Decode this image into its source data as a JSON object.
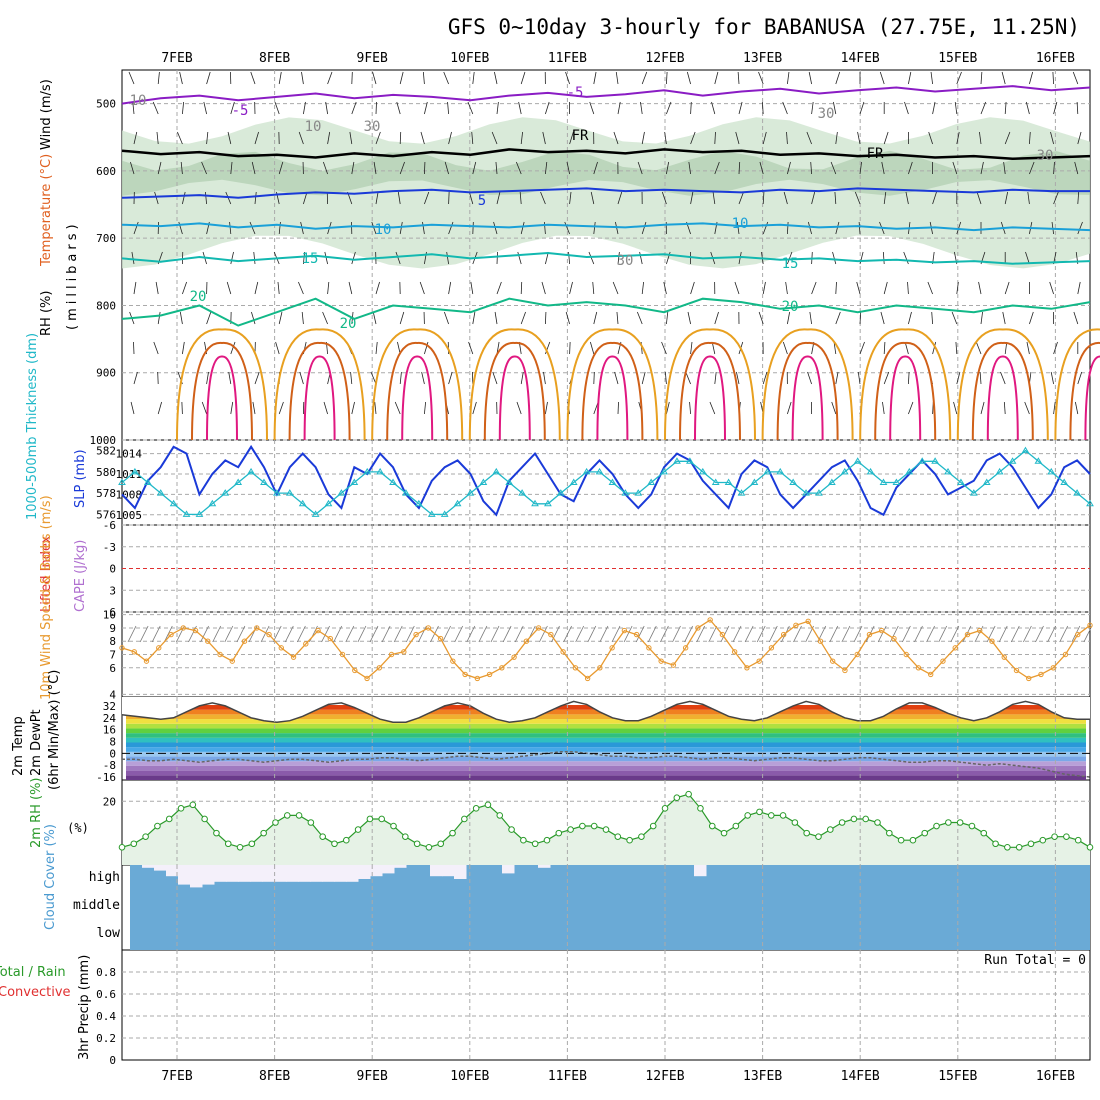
{
  "title": "GFS 0~10day 3-hourly for BABANUSA (27.75E, 11.25N)",
  "dates": [
    "7FEB",
    "8FEB",
    "9FEB",
    "10FEB",
    "11FEB",
    "12FEB",
    "13FEB",
    "14FEB",
    "15FEB",
    "16FEB"
  ],
  "colors": {
    "purple": "#8a1cc4",
    "blue": "#1a3ad8",
    "cyan": "#1aa0d8",
    "teal": "#12b8b0",
    "green": "#12b888",
    "orange": "#e8a020",
    "darkorange": "#d06018",
    "magenta": "#e01880",
    "rh_fill": "#cfe5cf",
    "cloud": "#6aaad6",
    "rh2m": "#2a9a2a",
    "wind10": "#e89a30",
    "slp": "#1a3ad8",
    "thick": "#20b8c8"
  },
  "chart_data": [
    {
      "id": "upper_air",
      "type": "contour",
      "ylabel_parts": [
        "RH (%)",
        "Temperature (°C)",
        "Wind (m/s)"
      ],
      "yaxis_label": "(millibars)",
      "yticks": [
        500,
        600,
        700,
        800,
        900,
        1000
      ],
      "ylim": [
        450,
        1000
      ],
      "contour_labels": [
        "-5",
        "-5",
        "FR",
        "FR",
        "5",
        "10",
        "10",
        "15",
        "15",
        "20",
        "20",
        "20",
        "30",
        "30",
        "30",
        "30",
        "10",
        "10"
      ],
      "temperature_levels": [
        {
          "label": "-5",
          "p": [
            500,
            492,
            488,
            495,
            490,
            485,
            492,
            487,
            490,
            495,
            488,
            484,
            490,
            486,
            480,
            488,
            482,
            478,
            485,
            480,
            476,
            482,
            478,
            474,
            480,
            476
          ]
        },
        {
          "label": "FR",
          "p": [
            570,
            575,
            572,
            578,
            576,
            580,
            574,
            578,
            572,
            576,
            568,
            572,
            570,
            574,
            568,
            572,
            570,
            576,
            574,
            578,
            576,
            580,
            578,
            582,
            580,
            578
          ]
        },
        {
          "label": "5",
          "p": [
            640,
            638,
            636,
            640,
            635,
            632,
            634,
            630,
            628,
            632,
            630,
            628,
            626,
            630,
            628,
            630,
            632,
            628,
            630,
            626,
            628,
            630,
            632,
            628,
            630,
            630
          ]
        },
        {
          "label": "10",
          "p": [
            680,
            682,
            678,
            684,
            680,
            686,
            682,
            684,
            680,
            682,
            684,
            680,
            682,
            684,
            680,
            678,
            682,
            680,
            684,
            682,
            686,
            684,
            688,
            684,
            686,
            688
          ]
        },
        {
          "label": "15",
          "p": [
            730,
            735,
            728,
            734,
            730,
            726,
            732,
            728,
            724,
            730,
            726,
            722,
            728,
            726,
            724,
            730,
            728,
            732,
            730,
            734,
            732,
            736,
            734,
            738,
            736,
            734
          ]
        },
        {
          "label": "20",
          "p": [
            820,
            815,
            800,
            830,
            810,
            790,
            820,
            800,
            805,
            810,
            790,
            800,
            795,
            800,
            810,
            790,
            795,
            805,
            800,
            810,
            800,
            805,
            810,
            800,
            805,
            795
          ]
        }
      ]
    },
    {
      "id": "thickness_slp",
      "type": "line",
      "ylabel_left": "1000-500mb Thickness (dm)",
      "ylabel_right": "SLP (mb)",
      "left_ticks": [
        576,
        578,
        580,
        582
      ],
      "left_ylim": [
        575,
        583
      ],
      "right_ticks": [
        1005,
        1008,
        1011,
        1014
      ],
      "right_ylim": [
        1003.5,
        1016
      ],
      "series": [
        {
          "name": "SLP",
          "values": [
            1008,
            1006,
            1010,
            1012,
            1015,
            1014,
            1008,
            1011,
            1013,
            1012,
            1015,
            1012,
            1008,
            1012,
            1014,
            1012,
            1008,
            1006,
            1012,
            1011,
            1014,
            1012,
            1008,
            1006,
            1010,
            1012,
            1013,
            1011,
            1007,
            1005,
            1010,
            1012,
            1014,
            1011,
            1008,
            1007,
            1011,
            1013,
            1011,
            1008,
            1006,
            1008,
            1012,
            1014,
            1013,
            1010,
            1008,
            1006,
            1011,
            1013,
            1012,
            1008,
            1006,
            1008,
            1010,
            1012,
            1013,
            1010,
            1006,
            1005,
            1009,
            1011,
            1013,
            1011,
            1008,
            1009,
            1010,
            1013,
            1014,
            1012,
            1009,
            1006,
            1008,
            1012,
            1013,
            1011
          ]
        },
        {
          "name": "Thickness",
          "values": [
            579,
            580,
            579,
            578,
            577,
            576,
            576,
            577,
            578,
            579,
            580,
            579,
            578,
            578,
            577,
            576,
            577,
            578,
            579,
            580,
            580,
            579,
            578,
            577,
            576,
            576,
            577,
            578,
            579,
            580,
            579,
            578,
            577,
            577,
            578,
            579,
            580,
            580,
            579,
            578,
            578,
            579,
            580,
            581,
            581,
            580,
            579,
            579,
            578,
            579,
            580,
            580,
            579,
            578,
            578,
            579,
            580,
            581,
            580,
            579,
            579,
            580,
            581,
            581,
            580,
            579,
            578,
            579,
            580,
            581,
            582,
            581,
            580,
            579,
            578,
            577
          ]
        }
      ]
    },
    {
      "id": "instability",
      "type": "line",
      "ylabel_left": "Lifted Index",
      "ylabel_right": "CAPE (J/kg)",
      "yticks": [
        -6,
        -3,
        0,
        3,
        6
      ],
      "ylim": [
        -6,
        6
      ],
      "series": []
    },
    {
      "id": "wind10m",
      "type": "line",
      "ylabel": "10m Wind Speed & Barbs (m/s)",
      "yticks": [
        4,
        6,
        7,
        8,
        9,
        10
      ],
      "ylim": [
        3.8,
        10.2
      ],
      "series": [
        {
          "name": "Speed",
          "values": [
            7.5,
            7.2,
            6.5,
            7.5,
            8.5,
            9,
            8.8,
            8,
            7,
            6.5,
            8,
            9,
            8.5,
            7.5,
            6.8,
            7.8,
            8.8,
            8.2,
            7,
            5.8,
            5.2,
            6,
            7,
            7.2,
            8.5,
            9,
            8.2,
            6.5,
            5.5,
            5.2,
            5.5,
            6,
            6.8,
            8,
            9,
            8.5,
            7.2,
            6,
            5.2,
            6,
            7.5,
            8.8,
            8.5,
            7.5,
            6.5,
            6.2,
            7.5,
            9,
            9.6,
            8.5,
            7.2,
            6,
            6.5,
            7.5,
            8.5,
            9.2,
            9.5,
            8,
            6.5,
            5.8,
            7,
            8.5,
            8.8,
            8.2,
            7,
            6,
            5.5,
            6.5,
            7.5,
            8.5,
            8.8,
            8,
            6.8,
            5.8,
            5.2,
            5.5,
            6,
            7,
            8.5,
            9.2
          ]
        }
      ]
    },
    {
      "id": "temp2m",
      "type": "area",
      "ylabel_parts": [
        "2m Temp",
        "2m DewPt",
        "(6hr Min/Max) (°C)"
      ],
      "yticks": [
        -16,
        -8,
        0,
        8,
        16,
        24,
        32
      ],
      "ylim": [
        -18,
        38
      ],
      "series": [
        {
          "name": "Temp",
          "values": [
            26,
            25,
            24,
            23,
            24,
            28,
            32,
            34,
            32,
            28,
            24,
            22,
            21,
            22,
            25,
            29,
            33,
            34,
            31,
            27,
            23,
            21,
            21,
            24,
            28,
            32,
            34,
            32,
            27,
            23,
            21,
            22,
            24,
            28,
            32,
            35,
            33,
            28,
            24,
            22,
            22,
            25,
            29,
            33,
            35,
            33,
            29,
            25,
            23,
            22,
            24,
            28,
            32,
            35,
            33,
            28,
            24,
            22,
            22,
            25,
            30,
            34,
            34,
            31,
            27,
            24,
            22,
            24,
            28,
            33,
            35,
            33,
            28,
            24,
            23,
            23
          ]
        },
        {
          "name": "DewPt",
          "values": [
            -4,
            -4,
            -5,
            -5,
            -4,
            -5,
            -6,
            -5,
            -4,
            -4,
            -5,
            -6,
            -5,
            -4,
            -4,
            -5,
            -6,
            -5,
            -4,
            -4,
            -3,
            -3,
            -4,
            -5,
            -4,
            -3,
            -2,
            -2,
            -3,
            -4,
            -3,
            -2,
            -1,
            0,
            1,
            1,
            0,
            -1,
            -2,
            -2,
            -3,
            -3,
            -2,
            -2,
            -3,
            -4,
            -3,
            -3,
            -4,
            -5,
            -4,
            -3,
            -3,
            -4,
            -5,
            -5,
            -4,
            -3,
            -3,
            -4,
            -5,
            -6,
            -6,
            -5,
            -5,
            -6,
            -7,
            -8,
            -7,
            -8,
            -9,
            -10,
            -12,
            -14,
            -15,
            -16
          ]
        }
      ]
    },
    {
      "id": "rh2m",
      "type": "area",
      "ylabel": "2m RH (%)",
      "yticks": [
        20
      ],
      "ylim": [
        2,
        26
      ],
      "series": [
        {
          "name": "RH",
          "values": [
            7,
            8,
            10,
            13,
            15,
            18,
            19,
            15,
            11,
            8,
            7,
            8,
            11,
            14,
            16,
            16,
            14,
            10,
            8,
            9,
            12,
            15,
            15,
            13,
            10,
            8,
            7,
            8,
            11,
            15,
            18,
            19,
            16,
            12,
            9,
            8,
            9,
            11,
            12,
            13,
            13,
            12,
            10,
            9,
            10,
            13,
            18,
            21,
            22,
            18,
            13,
            11,
            13,
            16,
            17,
            16,
            16,
            14,
            11,
            10,
            12,
            14,
            15,
            15,
            14,
            11,
            9,
            9,
            11,
            13,
            14,
            14,
            13,
            11,
            8,
            7,
            7,
            8,
            9,
            10,
            10,
            9,
            7
          ]
        }
      ]
    },
    {
      "id": "cloud",
      "type": "bar",
      "ylabel": "Cloud Cover (%)",
      "layer_labels": [
        "high",
        "middle",
        "low"
      ],
      "series": [
        {
          "name": "high",
          "values": [
            100,
            90,
            80,
            60,
            30,
            20,
            30,
            40,
            40,
            40,
            40,
            40,
            40,
            40,
            40,
            40,
            40,
            40,
            40,
            50,
            60,
            70,
            90,
            100,
            100,
            60,
            60,
            50,
            100,
            100,
            100,
            70,
            100,
            100,
            90,
            100,
            100,
            100,
            100,
            100,
            100,
            100,
            100,
            100,
            100,
            100,
            100,
            60,
            100,
            100,
            100,
            100,
            100,
            100,
            100,
            100,
            100,
            100,
            100,
            100,
            100,
            100,
            100,
            100,
            100,
            100,
            100,
            100,
            100,
            100,
            100,
            100,
            100,
            100,
            100,
            100,
            100,
            100,
            100,
            100
          ]
        }
      ]
    },
    {
      "id": "precip",
      "type": "bar",
      "ylabel_left": "Total / Rain",
      "ylabel_left2": "Convective",
      "ylabel": "3hr Precip (mm)",
      "annotation": "Run Total = 0",
      "yticks": [
        0,
        0.2,
        0.4,
        0.6,
        0.8
      ],
      "ylim": [
        0,
        1
      ],
      "series": []
    }
  ]
}
